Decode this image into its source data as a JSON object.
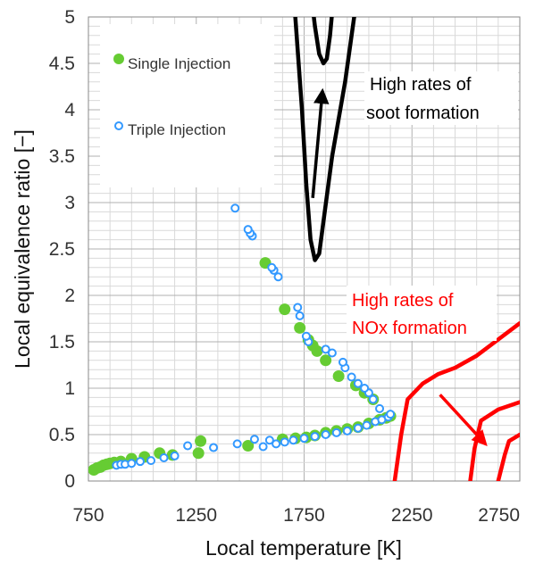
{
  "chart_data": {
    "type": "scatter",
    "title": "",
    "xlabel": "Local temperature [K]",
    "ylabel": "Local equivalence ratio [−]",
    "xlim": [
      750,
      2750
    ],
    "ylim": [
      0,
      5
    ],
    "xticks": [
      "750",
      "1250",
      "1750",
      "2250",
      "2750"
    ],
    "yticks": [
      "0",
      "0.5",
      "1",
      "1.5",
      "2",
      "2.5",
      "3",
      "3.5",
      "4",
      "4.5",
      "5"
    ],
    "grid": true,
    "legend_position": "top-left",
    "series": [
      {
        "name": "Single Injection",
        "marker": "filled-circle",
        "color": "#66cc33",
        "points": [
          [
            775,
            0.12
          ],
          [
            790,
            0.14
          ],
          [
            805,
            0.15
          ],
          [
            820,
            0.17
          ],
          [
            835,
            0.18
          ],
          [
            850,
            0.19
          ],
          [
            870,
            0.2
          ],
          [
            900,
            0.21
          ],
          [
            950,
            0.24
          ],
          [
            1010,
            0.26
          ],
          [
            1080,
            0.3
          ],
          [
            1140,
            0.28
          ],
          [
            1260,
            0.3
          ],
          [
            1270,
            0.43
          ],
          [
            1490,
            0.38
          ],
          [
            1650,
            0.45
          ],
          [
            1710,
            0.46
          ],
          [
            1760,
            0.47
          ],
          [
            1800,
            0.49
          ],
          [
            1850,
            0.52
          ],
          [
            1900,
            0.54
          ],
          [
            1950,
            0.56
          ],
          [
            2000,
            0.58
          ],
          [
            2050,
            0.62
          ],
          [
            2100,
            0.66
          ],
          [
            2130,
            0.68
          ],
          [
            2150,
            0.7
          ],
          [
            2070,
            0.88
          ],
          [
            2030,
            0.95
          ],
          [
            1990,
            1.03
          ],
          [
            1910,
            1.13
          ],
          [
            1850,
            1.3
          ],
          [
            1810,
            1.4
          ],
          [
            1790,
            1.46
          ],
          [
            1770,
            1.52
          ],
          [
            1730,
            1.65
          ],
          [
            1660,
            1.85
          ],
          [
            1570,
            2.35
          ]
        ]
      },
      {
        "name": "Triple Injection",
        "marker": "open-circle",
        "color": "#3399ff",
        "points": [
          [
            880,
            0.17
          ],
          [
            900,
            0.18
          ],
          [
            920,
            0.18
          ],
          [
            950,
            0.19
          ],
          [
            990,
            0.21
          ],
          [
            1040,
            0.22
          ],
          [
            1100,
            0.25
          ],
          [
            1150,
            0.27
          ],
          [
            1210,
            0.38
          ],
          [
            1330,
            0.36
          ],
          [
            1440,
            0.4
          ],
          [
            1520,
            0.45
          ],
          [
            1560,
            0.37
          ],
          [
            1590,
            0.44
          ],
          [
            1620,
            0.4
          ],
          [
            1660,
            0.42
          ],
          [
            1700,
            0.44
          ],
          [
            1750,
            0.46
          ],
          [
            1800,
            0.48
          ],
          [
            1850,
            0.5
          ],
          [
            1900,
            0.52
          ],
          [
            1950,
            0.54
          ],
          [
            2000,
            0.57
          ],
          [
            2040,
            0.6
          ],
          [
            2080,
            0.64
          ],
          [
            2110,
            0.66
          ],
          [
            2140,
            0.69
          ],
          [
            2150,
            0.72
          ],
          [
            2100,
            0.78
          ],
          [
            2070,
            0.88
          ],
          [
            2050,
            0.95
          ],
          [
            2030,
            1.0
          ],
          [
            2000,
            1.05
          ],
          [
            1970,
            1.12
          ],
          [
            1940,
            1.22
          ],
          [
            1930,
            1.28
          ],
          [
            1880,
            1.38
          ],
          [
            1850,
            1.42
          ],
          [
            1770,
            1.5
          ],
          [
            1760,
            1.56
          ],
          [
            1730,
            1.78
          ],
          [
            1720,
            1.87
          ],
          [
            1630,
            2.2
          ],
          [
            1610,
            2.27
          ],
          [
            1600,
            2.3
          ],
          [
            1510,
            2.64
          ],
          [
            1500,
            2.67
          ],
          [
            1490,
            2.71
          ],
          [
            1430,
            2.94
          ]
        ]
      }
    ],
    "regions": [
      {
        "label": "High rates of soot formation",
        "color": "#000000",
        "contours": [
          [
            [
              1700,
              5.3
            ],
            [
              1740,
              4.0
            ],
            [
              1760,
              3.2
            ],
            [
              1780,
              2.6
            ],
            [
              1800,
              2.38
            ],
            [
              1820,
              2.45
            ],
            [
              1840,
              2.8
            ],
            [
              1880,
              3.5
            ],
            [
              1940,
              4.3
            ],
            [
              2000,
              5.3
            ]
          ],
          [
            [
              1780,
              5.3
            ],
            [
              1800,
              4.9
            ],
            [
              1820,
              4.6
            ],
            [
              1840,
              4.5
            ],
            [
              1855,
              4.55
            ],
            [
              1870,
              4.8
            ],
            [
              1890,
              5.3
            ]
          ]
        ],
        "arrow": [
          [
            1790,
            3.05
          ],
          [
            1835,
            4.2
          ]
        ]
      },
      {
        "label": "High rates of NOx formation",
        "color": "#ff0000",
        "contours": [
          [
            [
              2170,
              0.0
            ],
            [
              2200,
              0.5
            ],
            [
              2230,
              0.88
            ],
            [
              2300,
              1.05
            ],
            [
              2370,
              1.15
            ],
            [
              2450,
              1.22
            ],
            [
              2550,
              1.35
            ],
            [
              2750,
              1.7
            ]
          ],
          [
            [
              2520,
              0.0
            ],
            [
              2540,
              0.35
            ],
            [
              2570,
              0.65
            ],
            [
              2650,
              0.77
            ],
            [
              2750,
              0.85
            ]
          ],
          [
            [
              2650,
              0.0
            ],
            [
              2680,
              0.28
            ],
            [
              2700,
              0.43
            ],
            [
              2750,
              0.5
            ]
          ]
        ],
        "arrow": [
          [
            2380,
            0.93
          ],
          [
            2590,
            0.4
          ]
        ]
      }
    ],
    "annotations": [
      {
        "text": "High rates of",
        "color": "#000000"
      },
      {
        "text": "soot formation",
        "color": "#000000"
      },
      {
        "text": "High rates of",
        "color": "#ff0000"
      },
      {
        "text": "NOx formation",
        "color": "#ff0000"
      }
    ]
  }
}
